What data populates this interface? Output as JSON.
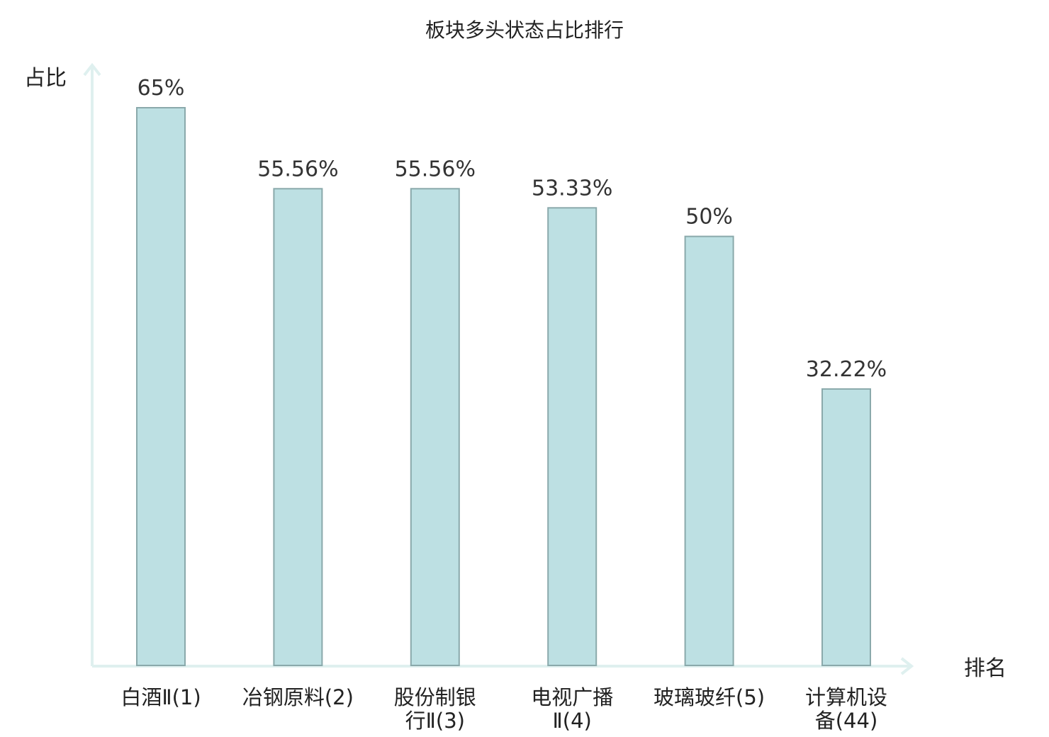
{
  "chart_data": {
    "type": "bar",
    "title": "板块多头状态占比排行",
    "ylabel": "占比",
    "xlabel": "排名",
    "categories": [
      [
        "白酒Ⅱ(1)"
      ],
      [
        "冶钢原料(2)"
      ],
      [
        "股份制银",
        "行Ⅱ(3)"
      ],
      [
        "电视广播",
        "Ⅱ(4)"
      ],
      [
        "玻璃玻纤(5)"
      ],
      [
        "计算机设",
        "备(44)"
      ]
    ],
    "values": [
      65,
      55.56,
      55.56,
      53.33,
      50,
      32.22
    ],
    "value_labels": [
      "65%",
      "55.56%",
      "55.56%",
      "53.33%",
      "50%",
      "32.22%"
    ],
    "highlight_index": 5,
    "ylim": [
      0,
      70
    ],
    "grid": false,
    "legend": "none",
    "colors": {
      "bar_fill": "#bde0e3",
      "bar_stroke": "#8aa9ab",
      "axis": "#dff0ef",
      "highlight_text": "#e8262b",
      "text": "#222222"
    }
  }
}
